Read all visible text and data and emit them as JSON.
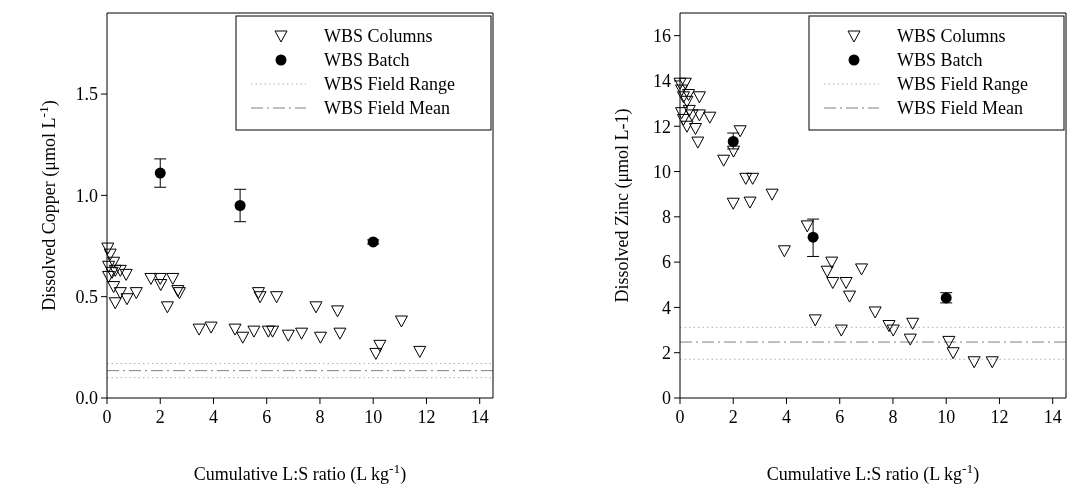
{
  "chart_data": [
    {
      "type": "scatter",
      "xlabel": "Cumulative L:S ratio (L kg$^{-1}$)",
      "ylabel": "Dissolved Copper (μmol L$^{-1}$)",
      "xlim": [
        0,
        14.5
      ],
      "xticks": [
        0,
        2,
        4,
        6,
        8,
        10,
        12,
        14
      ],
      "ylim": [
        0,
        1.9
      ],
      "yticks": [
        {
          "value": 0,
          "label": "0.0"
        },
        1.5,
        {
          "value": 1,
          "label": "1.0"
        },
        0.5
      ],
      "legend": "top right",
      "series": [
        {
          "name": "WBS Columns",
          "color": "#000000",
          "marker": "triangle",
          "x": [
            0.03,
            0.12,
            0.25,
            0.06,
            0.19,
            0.06,
            0.31,
            0.5,
            0.25,
            0.31,
            0.5,
            0.72,
            0.75,
            1.1,
            1.65,
            2.0,
            2.02,
            2.47,
            2.27,
            2.66,
            2.72,
            3.46,
            3.91,
            4.81,
            5.1,
            5.52,
            5.69,
            5.75,
            6.37,
            6.06,
            6.22,
            6.81,
            7.31,
            7.85,
            8.02,
            8.66,
            8.75,
            10.1,
            10.25,
            11.06,
            11.75
          ],
          "values": [
            0.74,
            0.71,
            0.67,
            0.65,
            0.62,
            0.6,
            0.63,
            0.63,
            0.55,
            0.47,
            0.52,
            0.61,
            0.49,
            0.52,
            0.59,
            0.59,
            0.56,
            0.59,
            0.45,
            0.53,
            0.52,
            0.34,
            0.35,
            0.34,
            0.3,
            0.33,
            0.52,
            0.5,
            0.5,
            0.33,
            0.33,
            0.31,
            0.32,
            0.45,
            0.3,
            0.43,
            0.32,
            0.22,
            0.26,
            0.38,
            0.23
          ]
        },
        {
          "name": "WBS Batch",
          "color": "#000000",
          "marker": "circle",
          "x": [
            2,
            5,
            10
          ],
          "values": [
            1.11,
            0.95,
            0.77
          ],
          "errors": [
            [
              1.04,
              1.18
            ],
            [
              0.87,
              1.03
            ],
            [
              0.76,
              0.78
            ]
          ]
        }
      ],
      "ref_lines": [
        {
          "axis": "y",
          "value": 0.17,
          "label": "WBS Field Range",
          "color": "#b0b0b0",
          "line_style": "dotted"
        },
        {
          "axis": "y",
          "value": 0.1,
          "color": "#b0b0b0",
          "line_style": "dotted"
        },
        {
          "axis": "y",
          "value": 0.135,
          "label": "WBS Field Mean",
          "color": "#808080",
          "line_style": "dashdot"
        }
      ]
    },
    {
      "type": "scatter",
      "xlabel": "Cumulative L:S ratio (L kg$^{-1}$)",
      "ylabel": "Dissolved Zinc (μmol L-1)",
      "xlim": [
        0,
        14.5
      ],
      "xticks": [
        0,
        2,
        4,
        6,
        8,
        10,
        12,
        14
      ],
      "ylim": [
        0,
        17
      ],
      "yticks": [
        0,
        2,
        4,
        6,
        8,
        10,
        12,
        14,
        16
      ],
      "legend": "top right",
      "series": [
        {
          "name": "WBS Columns",
          "color": "#000000",
          "marker": "triangle",
          "x": [
            0,
            0.2,
            0.06,
            0.13,
            0.32,
            0.26,
            0.73,
            0.06,
            0.35,
            0.13,
            0.45,
            0.26,
            0.58,
            0.73,
            1.12,
            0.67,
            1.64,
            2.01,
            2.26,
            2.0,
            2.47,
            2.73,
            2.63,
            3.46,
            3.92,
            4.78,
            5.08,
            5.53,
            5.7,
            5.74,
            6.24,
            6.37,
            6.82,
            6.06,
            7.33,
            7.85,
            8.01,
            8.74,
            8.65,
            10.1,
            10.26,
            11.05,
            11.73
          ],
          "values": [
            13.9,
            13.9,
            13.6,
            13.3,
            13.4,
            13.1,
            13.3,
            12.6,
            12.7,
            12.3,
            12.5,
            12.0,
            11.9,
            12.5,
            12.4,
            11.3,
            10.5,
            10.9,
            11.8,
            8.6,
            9.7,
            9.7,
            8.65,
            9.0,
            6.5,
            7.6,
            3.45,
            5.6,
            6.0,
            5.1,
            5.1,
            4.5,
            5.7,
            3.0,
            3.8,
            3.2,
            3.0,
            3.3,
            2.6,
            2.5,
            2.0,
            1.6,
            1.6
          ]
        },
        {
          "name": "WBS Batch",
          "color": "#000000",
          "marker": "circle",
          "x": [
            2,
            5,
            10
          ],
          "values": [
            11.33,
            7.1,
            4.42
          ],
          "errors": [
            [
              11.0,
              11.7
            ],
            [
              6.25,
              7.9
            ],
            [
              4.2,
              4.65
            ]
          ]
        }
      ],
      "ref_lines": [
        {
          "axis": "y",
          "value": 3.12,
          "label": "WBS Field Range",
          "color": "#b0b0b0",
          "line_style": "dotted"
        },
        {
          "axis": "y",
          "value": 1.71,
          "color": "#b0b0b0",
          "line_style": "dotted"
        },
        {
          "axis": "y",
          "value": 2.47,
          "label": "WBS Field Mean",
          "color": "#808080",
          "line_style": "dashdot"
        }
      ]
    }
  ]
}
